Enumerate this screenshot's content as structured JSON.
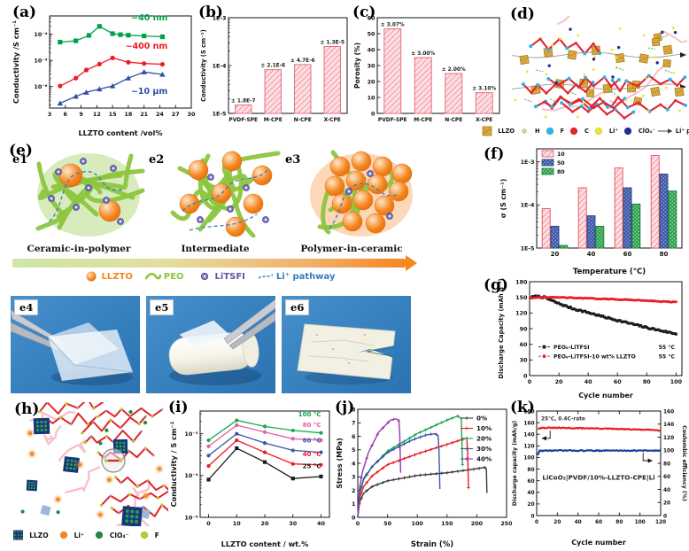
{
  "figure": {
    "background": "#ffffff"
  },
  "panels": {
    "a": {
      "label": "(a)"
    },
    "b": {
      "label": "(b)"
    },
    "c": {
      "label": "(c)"
    },
    "d": {
      "label": "(d)",
      "legend": [
        {
          "name": "LLZO",
          "shape": "square-hatch",
          "color": "#d9a740"
        },
        {
          "name": "H",
          "shape": "circle-sm",
          "color": "#bfe37e"
        },
        {
          "name": "F",
          "shape": "circle",
          "color": "#29b7e8"
        },
        {
          "name": "C",
          "shape": "circle",
          "color": "#e42330"
        },
        {
          "name": "Li⁺",
          "shape": "circle",
          "color": "#efe13a"
        },
        {
          "name": "ClO₄⁻",
          "shape": "circle",
          "color": "#232a8f"
        },
        {
          "name": "Li⁺ pathway",
          "shape": "arrow",
          "color": "#444444"
        }
      ]
    },
    "e": {
      "label": "(e)",
      "sub": [
        {
          "id": "e1",
          "caption": "Ceramic-in-polymer"
        },
        {
          "id": "e2",
          "caption": "Intermediate"
        },
        {
          "id": "e3",
          "caption": "Polymer-in-ceramic"
        }
      ],
      "legend": [
        {
          "name": "LLZTO",
          "shape": "sphere",
          "color": "#f5871f"
        },
        {
          "name": "PEO",
          "shape": "wave",
          "color": "#8cc63e"
        },
        {
          "name": "LiTSFI",
          "shape": "dot",
          "color": "#5b57a6"
        },
        {
          "name": "Li⁺ pathway",
          "shape": "dashed",
          "color": "#3a7bbf"
        }
      ],
      "photos": [
        {
          "id": "e4"
        },
        {
          "id": "e5"
        },
        {
          "id": "e6"
        }
      ]
    },
    "f": {
      "label": "(f)"
    },
    "g": {
      "label": "(g)"
    },
    "h": {
      "label": "(h)",
      "legend": [
        {
          "name": "LLZO",
          "shape": "square-dots",
          "color": "#16357f"
        },
        {
          "name": "Li⁺",
          "shape": "circle",
          "color": "#f5871f"
        },
        {
          "name": "ClO₄⁻",
          "shape": "circle",
          "color": "#1d8a3c"
        },
        {
          "name": "F",
          "shape": "circle",
          "color": "#b6cc35"
        }
      ]
    },
    "i": {
      "label": "(i)"
    },
    "j": {
      "label": "(j)"
    },
    "k": {
      "label": "(k)"
    }
  },
  "chart_data": [
    {
      "panel": "a",
      "type": "line",
      "xlabel": "LLZTO content /vol%",
      "ylabel": "Conductivity /S cm⁻¹",
      "xlim": [
        3,
        30
      ],
      "x_ticks": [
        3,
        6,
        9,
        12,
        15,
        18,
        21,
        24,
        27,
        30
      ],
      "y_scale": "log",
      "ylim": [
        1.5e-07,
        0.0005
      ],
      "y_ticks": [
        {
          "v": 0.0001,
          "l": "10⁻⁴"
        },
        {
          "v": 1e-05,
          "l": "10⁻⁵"
        },
        {
          "v": 1e-06,
          "l": "10⁻⁶"
        }
      ],
      "legend_pos": "inline",
      "series": [
        {
          "name": "~40 nm",
          "color": "#00a14b",
          "marker": "square",
          "x": [
            5,
            8,
            10.5,
            12.5,
            15,
            16.5,
            18,
            21,
            24.5
          ],
          "y": [
            5e-05,
            5.6e-05,
            9e-05,
            0.0002,
            0.000105,
            9.6e-05,
            9.2e-05,
            8.6e-05,
            8e-05
          ],
          "label_at": [
            25.5,
            0.00034
          ]
        },
        {
          "name": "~400 nm",
          "color": "#ed1c24",
          "marker": "circle",
          "x": [
            5,
            8,
            10,
            12.5,
            15,
            18,
            21,
            24.5
          ],
          "y": [
            1.05e-06,
            2.1e-06,
            4.3e-06,
            7.2e-06,
            1.25e-05,
            8.5e-06,
            7.6e-06,
            7.1e-06
          ],
          "label_at": [
            25.5,
            2.8e-05
          ]
        },
        {
          "name": "~10 μm",
          "color": "#2e4fa2",
          "marker": "triangle",
          "x": [
            5,
            8,
            10,
            12.5,
            15,
            18,
            21,
            24.5
          ],
          "y": [
            2.3e-07,
            4.2e-07,
            6e-07,
            8e-07,
            1.05e-06,
            2.1e-06,
            3.6e-06,
            2.9e-06
          ],
          "label_at": [
            25.5,
            5.2e-07
          ]
        }
      ]
    },
    {
      "panel": "b",
      "type": "bar",
      "ylabel": "Conductivity (S cm⁻¹)",
      "categories": [
        "PVDF-SPE",
        "M-CPE",
        "N-CPE",
        "X-CPE"
      ],
      "values": [
        1.5e-05,
        8.2e-05,
        0.000105,
        0.00025
      ],
      "bar_labels": [
        "± 1.8E-7",
        "± 2.1E-6",
        "± 4.7E-6",
        "± 1.3E-5"
      ],
      "y_scale": "log",
      "ylim": [
        1e-05,
        0.001
      ],
      "y_ticks": [
        {
          "v": 0.001,
          "l": "1E-3"
        },
        {
          "v": 0.0001,
          "l": "1E-4"
        },
        {
          "v": 1e-05,
          "l": "1E-5"
        }
      ],
      "bar_fill_bg": "#fcdfe2",
      "bar_hatch": "#ef8090",
      "bar_edge": "#e8707e"
    },
    {
      "panel": "c",
      "type": "bar",
      "ylabel": "Porosity (%)",
      "categories": [
        "PVDF-SPE",
        "M-CPE",
        "N-CPE",
        "X-CPE"
      ],
      "values": [
        53,
        35,
        25,
        13
      ],
      "bar_labels": [
        "± 3.07%",
        "± 3.00%",
        "± 2.00%",
        "± 3.10%"
      ],
      "ylim": [
        0,
        60
      ],
      "y_ticks": [
        0,
        10,
        20,
        30,
        40,
        50,
        60
      ],
      "bar_fill_bg": "#fcdfe2",
      "bar_hatch": "#ef8090",
      "bar_edge": "#e8707e"
    },
    {
      "panel": "f",
      "type": "bar-group",
      "xlabel": "Temperature (°C)",
      "ylabel": "σ (S cm⁻¹)",
      "categories": [
        "20",
        "40",
        "60",
        "80"
      ],
      "y_scale": "log",
      "ylim": [
        1e-05,
        0.002
      ],
      "y_ticks": [
        {
          "v": 0.001,
          "l": "1E-3"
        },
        {
          "v": 0.0001,
          "l": "1E-4"
        },
        {
          "v": 1e-05,
          "l": "1E-5"
        }
      ],
      "legend_pos": "tl",
      "series": [
        {
          "name": "10",
          "color": "#ed1c24",
          "fill": "hatch",
          "values": [
            8.2e-05,
            0.00025,
            0.00072,
            0.0014
          ]
        },
        {
          "name": "50",
          "color": "#3a57a7",
          "fill": "dots-blue",
          "values": [
            3.2e-05,
            5.6e-05,
            0.00025,
            0.00052
          ]
        },
        {
          "name": "80",
          "color": "#2aa04a",
          "fill": "dots-green",
          "values": [
            1.15e-05,
            3.2e-05,
            0.000105,
            0.00021
          ]
        }
      ]
    },
    {
      "panel": "g",
      "type": "scatter",
      "xlabel": "Cycle number",
      "ylabel": "Discharge Capacity (mAh g⁻¹)",
      "xlim": [
        0,
        104
      ],
      "x_ticks": [
        0,
        20,
        40,
        60,
        80,
        100
      ],
      "ylim": [
        0,
        180
      ],
      "y_ticks": [
        0,
        30,
        60,
        90,
        120,
        150,
        180
      ],
      "series": [
        {
          "name": "PEO₈-LiTFSI",
          "note": "55 °C",
          "color": "#1a1a1a",
          "marker": "square",
          "x": [
            1,
            5,
            10,
            15,
            20,
            30,
            40,
            50,
            60,
            70,
            80,
            90,
            100
          ],
          "y": [
            150,
            152,
            150,
            144,
            138,
            128,
            121,
            113,
            106,
            99,
            92,
            86,
            80
          ]
        },
        {
          "name": "PEO₈-LiTFSI-10 wt% LLZTO",
          "note": "55 °C",
          "color": "#ed1c24",
          "marker": "circle",
          "x": [
            1,
            10,
            20,
            30,
            40,
            50,
            60,
            70,
            80,
            90,
            100
          ],
          "y": [
            149,
            150,
            150,
            149,
            148,
            147,
            146,
            145,
            144,
            142,
            141
          ]
        }
      ]
    },
    {
      "panel": "i",
      "type": "line",
      "xlabel": "LLZTO content / wt.%",
      "ylabel": "Conductivity / S cm⁻¹",
      "xlim": [
        -3,
        43
      ],
      "x_ticks": [
        0,
        10,
        20,
        30,
        40
      ],
      "y_scale": "log",
      "ylim": [
        1e-05,
        0.0035
      ],
      "y_ticks": [
        {
          "v": 0.001,
          "l": "10⁻³"
        },
        {
          "v": 0.0001,
          "l": "10⁻⁴"
        },
        {
          "v": 1e-05,
          "l": "10⁻⁵"
        }
      ],
      "legend_pos": "inline",
      "series": [
        {
          "name": "100 °C",
          "color": "#18a850",
          "marker": "circle",
          "x": [
            0,
            10,
            20,
            30,
            40
          ],
          "y": [
            0.0007,
            0.0021,
            0.0015,
            0.0012,
            0.00105
          ],
          "label_at": [
            40,
            0.0026
          ]
        },
        {
          "name": "80 °C",
          "color": "#e560a2",
          "marker": "circle",
          "x": [
            0,
            10,
            20,
            30,
            40
          ],
          "y": [
            0.0005,
            0.0016,
            0.0011,
            0.00076,
            0.0007
          ],
          "label_at": [
            40,
            0.00145
          ]
        },
        {
          "name": "60 °C",
          "color": "#3a57a7",
          "marker": "circle",
          "x": [
            0,
            10,
            20,
            30,
            40
          ],
          "y": [
            0.0003,
            0.001,
            0.0006,
            0.0004,
            0.00036
          ],
          "label_at": [
            40,
            0.00062
          ]
        },
        {
          "name": "40 °C",
          "color": "#ed1c24",
          "marker": "circle",
          "x": [
            0,
            10,
            20,
            30,
            40
          ],
          "y": [
            0.00017,
            0.0007,
            0.00036,
            0.00019,
            0.00018
          ],
          "label_at": [
            40,
            0.00029
          ]
        },
        {
          "name": "25 °C",
          "color": "#1a1a1a",
          "marker": "square",
          "x": [
            0,
            10,
            20,
            30,
            40
          ],
          "y": [
            8e-05,
            0.00045,
            0.00021,
            8.5e-05,
            9.5e-05
          ],
          "label_at": [
            40,
            0.00015
          ]
        }
      ]
    },
    {
      "panel": "j",
      "type": "curve",
      "xlabel": "Strain (%)",
      "ylabel": "Stress (MPa)",
      "xlim": [
        0,
        250
      ],
      "x_ticks": [
        0,
        50,
        100,
        150,
        200,
        250
      ],
      "ylim": [
        0,
        8
      ],
      "y_ticks": [
        0,
        1,
        2,
        3,
        4,
        5,
        6,
        7,
        8
      ],
      "legend_pos": "tr",
      "series": [
        {
          "name": "0%",
          "color": "#3a3a3a",
          "x": [
            0,
            3,
            10,
            25,
            50,
            100,
            150,
            200,
            213,
            216,
            217
          ],
          "y": [
            0,
            1.1,
            1.8,
            2.3,
            2.7,
            3.1,
            3.3,
            3.6,
            3.7,
            3.6,
            1.8
          ]
        },
        {
          "name": "10%",
          "color": "#ed1c24",
          "x": [
            0,
            3,
            10,
            25,
            50,
            100,
            150,
            178,
            184,
            186
          ],
          "y": [
            0,
            1.4,
            2.3,
            3.1,
            3.9,
            4.7,
            5.4,
            5.8,
            5.9,
            2.2
          ]
        },
        {
          "name": "20%",
          "color": "#18a850",
          "x": [
            0,
            3,
            10,
            25,
            50,
            100,
            150,
            168,
            174,
            176
          ],
          "y": [
            0,
            1.7,
            2.8,
            3.8,
            4.9,
            6.2,
            7.2,
            7.5,
            7.3,
            3.9
          ]
        },
        {
          "name": "30%",
          "color": "#3a57a7",
          "x": [
            0,
            3,
            10,
            25,
            50,
            90,
            115,
            130,
            136,
            138
          ],
          "y": [
            0,
            1.8,
            2.9,
            3.8,
            4.8,
            5.7,
            6.1,
            6.2,
            6.0,
            2.1
          ]
        },
        {
          "name": "40%",
          "color": "#9437b1",
          "x": [
            0,
            3,
            8,
            18,
            35,
            55,
            65,
            70,
            72
          ],
          "y": [
            0,
            2.2,
            3.4,
            4.8,
            6.3,
            7.2,
            7.3,
            7.1,
            3.3
          ]
        }
      ]
    },
    {
      "panel": "k",
      "type": "dual",
      "xlabel": "Cycle number",
      "ylabel": "Discharge capacity (mAh/g)",
      "ylabel2": "Coulombic efficiency (%)",
      "xlim": [
        0,
        120
      ],
      "x_ticks": [
        0,
        20,
        40,
        60,
        80,
        100,
        120
      ],
      "ylim": [
        0,
        180
      ],
      "y_ticks": [
        0,
        20,
        40,
        60,
        80,
        100,
        120,
        140,
        160,
        180
      ],
      "ylim2": [
        0,
        160
      ],
      "y_ticks2": [
        0,
        20,
        40,
        60,
        80,
        100,
        120,
        140,
        160
      ],
      "annotation": "25℃, 0.4C-rate",
      "cell_label": "LiCoO₂|PVDF/10%-LLZTO-CPE|Li",
      "series": [
        {
          "name": "Discharge capacity",
          "axis": "left",
          "color": "#ed1c24",
          "x": [
            1,
            5,
            20,
            60,
            100,
            120
          ],
          "y": [
            150,
            151,
            151,
            150,
            148,
            147
          ]
        },
        {
          "name": "Coulombic efficiency",
          "axis": "right",
          "color": "#1f3f9e",
          "x": [
            1,
            3,
            20,
            60,
            100,
            120
          ],
          "y": [
            93,
            99.3,
            99.5,
            99.5,
            99.5,
            99.4
          ]
        }
      ]
    }
  ]
}
